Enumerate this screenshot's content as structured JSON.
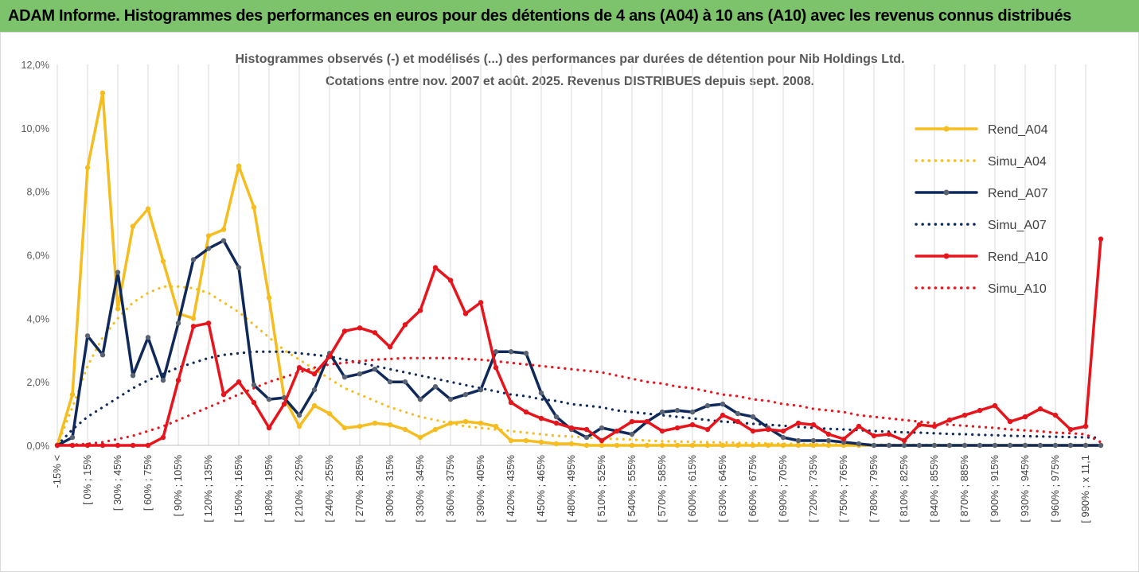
{
  "header": {
    "title": "ADAM Informe. Histogrammes des performances en euros pour des détentions de 4 ans (A04) à 10 ans (A10) avec les revenus connus distribués"
  },
  "chart_data": {
    "type": "line",
    "title": "Histogrammes observés (-) et modélisés (...) des performances par durées de détention pour Nib Holdings Ltd.",
    "subtitle": "Cotations entre nov. 2007 et août. 2025. Revenus DISTRIBUES depuis sept. 2008.",
    "xlabel": "",
    "ylabel": "",
    "ylim": [
      0,
      12
    ],
    "yticks": [
      "0,0%",
      "2,0%",
      "4,0%",
      "6,0%",
      "8,0%",
      "10,0%",
      "12,0%"
    ],
    "grid": "vertical",
    "legend_position": "right",
    "x_labels": [
      "-15% <",
      "[ 0% ; 15% ",
      "[ 30% ; 45% ",
      "[ 60% ; 75% ",
      "[ 90% ; 105% ",
      "[ 120% ; 135% ",
      "[ 150% ; 165% ",
      "[ 180% ; 195% ",
      "[ 210% ; 225% ",
      "[ 240% ; 255% ",
      "[ 270% ; 285% ",
      "[ 300% ; 315% ",
      "[ 330% ; 345% ",
      "[ 360% ; 375% ",
      "[ 390% ; 405% ",
      "[ 420% ; 435% ",
      "[ 450% ; 465% ",
      "[ 480% ; 495% ",
      "[ 510% ; 525% ",
      "[ 540% ; 555% ",
      "[ 570% ; 585% ",
      "[ 600% ; 615% ",
      "[ 630% ; 645% ",
      "[ 660% ; 675% ",
      "[ 690% ; 705% ",
      "[ 720% ; 735% ",
      "[ 750% ; 765% ",
      "[ 780% ; 795% ",
      "[ 810% ; 825% ",
      "[ 840% ; 855% ",
      "[ 870% ; 885% ",
      "[ 900% ; 915% ",
      "[ 930% ; 945% ",
      "[ 960% ; 975% ",
      "[ 990% ; x 11,1"
    ],
    "categories_count": 70,
    "series": [
      {
        "name": "Rend_A04",
        "style": "solid",
        "color": "#f5bd1f",
        "values": [
          0,
          1.6,
          8.75,
          11.1,
          4.3,
          6.9,
          7.45,
          5.8,
          4.15,
          4.0,
          6.6,
          6.8,
          8.8,
          7.5,
          4.65,
          1.5,
          0.6,
          1.25,
          1.0,
          0.55,
          0.6,
          0.7,
          0.65,
          0.5,
          0.25,
          0.5,
          0.7,
          0.75,
          0.7,
          0.6,
          0.15,
          0.15,
          0.1,
          0.05,
          0.05,
          0,
          0,
          0,
          0,
          0,
          0,
          0,
          0,
          0,
          0,
          0,
          0,
          0,
          0,
          0,
          0,
          0,
          0,
          0,
          0,
          0,
          0,
          0,
          0,
          0,
          0,
          0,
          0,
          0,
          0,
          0,
          0,
          0,
          0,
          0
        ]
      },
      {
        "name": "Simu_A04",
        "style": "dotted",
        "color": "#f5bd1f",
        "values": [
          0,
          1.2,
          2.5,
          3.4,
          4.0,
          4.5,
          4.8,
          5.0,
          5.0,
          4.95,
          4.8,
          4.5,
          4.2,
          3.8,
          3.4,
          3.0,
          2.7,
          2.4,
          2.1,
          1.8,
          1.6,
          1.4,
          1.2,
          1.05,
          0.9,
          0.8,
          0.7,
          0.6,
          0.55,
          0.5,
          0.45,
          0.4,
          0.35,
          0.3,
          0.28,
          0.25,
          0.22,
          0.2,
          0.18,
          0.15,
          0.13,
          0.12,
          0.11,
          0.1,
          0.09,
          0.08,
          0.07,
          0.06,
          0.05,
          0.05,
          0.04,
          0.04,
          0.03,
          0.03,
          0.03,
          0.02,
          0.02,
          0.02,
          0.02,
          0.01,
          0.01,
          0.01,
          0.01,
          0.01,
          0.01,
          0.01,
          0.01,
          0.01,
          0.01,
          0.01
        ]
      },
      {
        "name": "Rend_A07",
        "style": "solid",
        "color": "#0f2a5a",
        "values": [
          0,
          0.25,
          3.45,
          2.85,
          5.45,
          2.2,
          3.4,
          2.05,
          3.85,
          5.85,
          6.2,
          6.45,
          5.6,
          1.9,
          1.45,
          1.5,
          0.95,
          1.75,
          2.9,
          2.15,
          2.25,
          2.4,
          2.0,
          2.0,
          1.45,
          1.85,
          1.45,
          1.6,
          1.75,
          2.95,
          2.95,
          2.9,
          1.65,
          0.9,
          0.5,
          0.25,
          0.55,
          0.45,
          0.35,
          0.75,
          1.05,
          1.1,
          1.05,
          1.25,
          1.3,
          1.0,
          0.9,
          0.55,
          0.25,
          0.15,
          0.15,
          0.15,
          0.1,
          0.05,
          0,
          0,
          0,
          0,
          0,
          0,
          0,
          0,
          0,
          0,
          0,
          0,
          0,
          0,
          0,
          0
        ]
      },
      {
        "name": "Simu_A07",
        "style": "dotted",
        "color": "#0f2a5a",
        "values": [
          0,
          0.5,
          0.9,
          1.2,
          1.5,
          1.8,
          2.05,
          2.25,
          2.45,
          2.6,
          2.75,
          2.85,
          2.9,
          2.95,
          2.95,
          2.95,
          2.9,
          2.85,
          2.8,
          2.7,
          2.6,
          2.5,
          2.4,
          2.3,
          2.2,
          2.1,
          2.0,
          1.9,
          1.8,
          1.7,
          1.6,
          1.55,
          1.45,
          1.4,
          1.3,
          1.25,
          1.2,
          1.1,
          1.05,
          1.0,
          0.95,
          0.9,
          0.85,
          0.8,
          0.75,
          0.72,
          0.68,
          0.65,
          0.62,
          0.58,
          0.55,
          0.52,
          0.5,
          0.48,
          0.45,
          0.43,
          0.41,
          0.4,
          0.38,
          0.36,
          0.35,
          0.33,
          0.32,
          0.3,
          0.29,
          0.28,
          0.27,
          0.26,
          0.25,
          0.24
        ]
      },
      {
        "name": "Rend_A10",
        "style": "solid",
        "color": "#e8141c",
        "values": [
          0,
          0,
          0,
          0,
          0,
          0,
          0,
          0.25,
          2.05,
          3.75,
          3.85,
          1.6,
          2.0,
          1.35,
          0.55,
          1.3,
          2.45,
          2.25,
          2.8,
          3.6,
          3.7,
          3.55,
          3.1,
          3.8,
          4.25,
          5.6,
          5.2,
          4.15,
          4.5,
          2.45,
          1.35,
          1.05,
          0.85,
          0.7,
          0.55,
          0.5,
          0.15,
          0.45,
          0.75,
          0.75,
          0.45,
          0.55,
          0.65,
          0.5,
          0.95,
          0.75,
          0.45,
          0.5,
          0.45,
          0.7,
          0.65,
          0.35,
          0.2,
          0.6,
          0.3,
          0.35,
          0.15,
          0.65,
          0.6,
          0.8,
          0.95,
          1.1,
          1.25,
          0.75,
          0.9,
          1.15,
          0.95,
          0.5,
          0.6,
          6.5
        ]
      },
      {
        "name": "Simu_A10",
        "style": "dotted",
        "color": "#e8141c",
        "values": [
          0,
          0.02,
          0.05,
          0.1,
          0.2,
          0.3,
          0.45,
          0.6,
          0.8,
          1.0,
          1.2,
          1.4,
          1.6,
          1.8,
          2.0,
          2.15,
          2.3,
          2.45,
          2.55,
          2.6,
          2.65,
          2.7,
          2.72,
          2.75,
          2.75,
          2.75,
          2.75,
          2.72,
          2.7,
          2.65,
          2.6,
          2.55,
          2.5,
          2.45,
          2.4,
          2.35,
          2.3,
          2.2,
          2.1,
          2.0,
          1.95,
          1.85,
          1.8,
          1.7,
          1.6,
          1.55,
          1.45,
          1.4,
          1.3,
          1.25,
          1.15,
          1.1,
          1.05,
          0.95,
          0.9,
          0.85,
          0.8,
          0.75,
          0.7,
          0.65,
          0.62,
          0.58,
          0.55,
          0.5,
          0.47,
          0.44,
          0.4,
          0.38,
          0.35,
          0.1
        ]
      }
    ]
  }
}
